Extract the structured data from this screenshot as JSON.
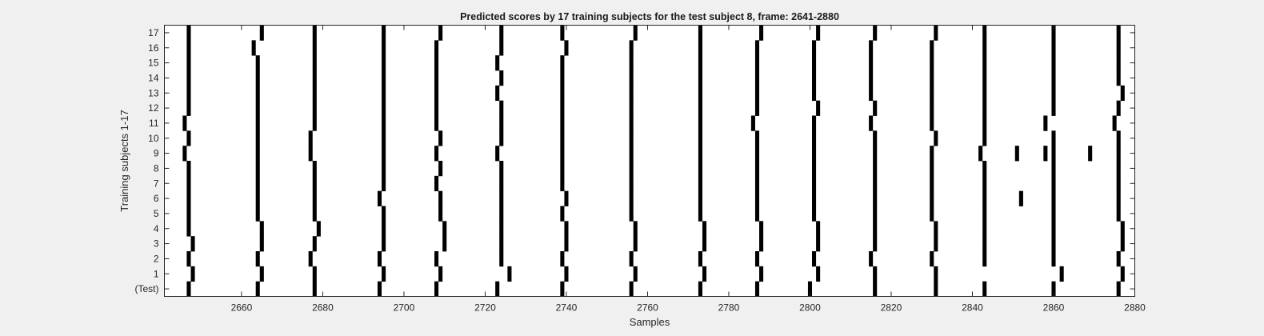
{
  "chart_data": {
    "type": "heatmap",
    "title": "Predicted scores by 17 training subjects for the test subject 8, frame: 2641-2880",
    "xlabel": "Samples",
    "ylabel": "Training subjects 1-17",
    "xlim": [
      2641,
      2880
    ],
    "x_ticks": [
      2660,
      2680,
      2700,
      2720,
      2740,
      2760,
      2780,
      2800,
      2820,
      2840,
      2860,
      2880
    ],
    "y_tick_labels": [
      "(Test)",
      "1",
      "2",
      "3",
      "4",
      "5",
      "6",
      "7",
      "8",
      "9",
      "10",
      "11",
      "12",
      "13",
      "14",
      "15",
      "16",
      "17"
    ],
    "grid": false,
    "colors": {
      "mark": "#000000",
      "background": "#ffffff",
      "figure": "#f0f0f0",
      "axis": "#262626"
    },
    "rows": [
      {
        "label": "(Test)",
        "events": [
          2647,
          2664,
          2678,
          2694,
          2708,
          2723,
          2739,
          2756,
          2773,
          2787,
          2800,
          2816,
          2831,
          2843,
          2860,
          2876
        ]
      },
      {
        "label": "1",
        "events": [
          2648,
          2665,
          2678,
          2695,
          2709,
          2726,
          2740,
          2757,
          2774,
          2788,
          2802,
          2816,
          2831,
          2862,
          2877
        ]
      },
      {
        "label": "2",
        "events": [
          2647,
          2664,
          2677,
          2694,
          2708,
          2724,
          2739,
          2756,
          2773,
          2787,
          2801,
          2815,
          2830,
          2843,
          2860,
          2876
        ]
      },
      {
        "label": "3",
        "events": [
          2648,
          2665,
          2678,
          2695,
          2710,
          2724,
          2740,
          2757,
          2774,
          2788,
          2802,
          2816,
          2831,
          2843,
          2860,
          2877
        ]
      },
      {
        "label": "4",
        "events": [
          2647,
          2665,
          2679,
          2695,
          2710,
          2724,
          2740,
          2757,
          2774,
          2788,
          2802,
          2816,
          2831,
          2843,
          2860,
          2877
        ]
      },
      {
        "label": "5",
        "events": [
          2647,
          2664,
          2678,
          2695,
          2709,
          2724,
          2739,
          2756,
          2773,
          2787,
          2801,
          2816,
          2830,
          2843,
          2860,
          2876
        ]
      },
      {
        "label": "6",
        "events": [
          2647,
          2664,
          2678,
          2694,
          2709,
          2724,
          2740,
          2756,
          2773,
          2787,
          2801,
          2816,
          2830,
          2843,
          2852,
          2860,
          2876
        ]
      },
      {
        "label": "7",
        "events": [
          2647,
          2664,
          2678,
          2695,
          2708,
          2724,
          2739,
          2756,
          2773,
          2787,
          2801,
          2816,
          2830,
          2843,
          2860,
          2876
        ]
      },
      {
        "label": "8",
        "events": [
          2647,
          2664,
          2678,
          2695,
          2709,
          2724,
          2739,
          2756,
          2773,
          2787,
          2801,
          2816,
          2830,
          2843,
          2860,
          2876
        ]
      },
      {
        "label": "9",
        "events": [
          2646,
          2664,
          2677,
          2695,
          2708,
          2723,
          2739,
          2756,
          2773,
          2787,
          2801,
          2816,
          2830,
          2842,
          2851,
          2858,
          2860,
          2869,
          2876
        ]
      },
      {
        "label": "10",
        "events": [
          2647,
          2664,
          2677,
          2695,
          2709,
          2724,
          2739,
          2756,
          2773,
          2787,
          2801,
          2816,
          2831,
          2843,
          2860,
          2876
        ]
      },
      {
        "label": "11",
        "events": [
          2646,
          2664,
          2678,
          2695,
          2708,
          2724,
          2739,
          2756,
          2773,
          2786,
          2801,
          2815,
          2830,
          2843,
          2858,
          2875
        ]
      },
      {
        "label": "12",
        "events": [
          2647,
          2664,
          2678,
          2695,
          2708,
          2724,
          2739,
          2756,
          2773,
          2787,
          2802,
          2816,
          2830,
          2843,
          2860,
          2876
        ]
      },
      {
        "label": "13",
        "events": [
          2647,
          2664,
          2678,
          2695,
          2708,
          2723,
          2739,
          2756,
          2773,
          2787,
          2801,
          2815,
          2830,
          2843,
          2860,
          2877
        ]
      },
      {
        "label": "14",
        "events": [
          2647,
          2664,
          2678,
          2695,
          2708,
          2724,
          2739,
          2756,
          2773,
          2787,
          2801,
          2815,
          2830,
          2843,
          2860,
          2876
        ]
      },
      {
        "label": "15",
        "events": [
          2647,
          2664,
          2678,
          2695,
          2708,
          2723,
          2739,
          2756,
          2773,
          2787,
          2801,
          2815,
          2830,
          2843,
          2860,
          2876
        ]
      },
      {
        "label": "16",
        "events": [
          2647,
          2663,
          2678,
          2695,
          2708,
          2724,
          2740,
          2756,
          2773,
          2787,
          2801,
          2815,
          2830,
          2843,
          2860,
          2876
        ]
      },
      {
        "label": "17",
        "events": [
          2647,
          2665,
          2678,
          2695,
          2709,
          2724,
          2739,
          2757,
          2773,
          2788,
          2802,
          2816,
          2831,
          2843,
          2860,
          2876
        ]
      }
    ]
  }
}
